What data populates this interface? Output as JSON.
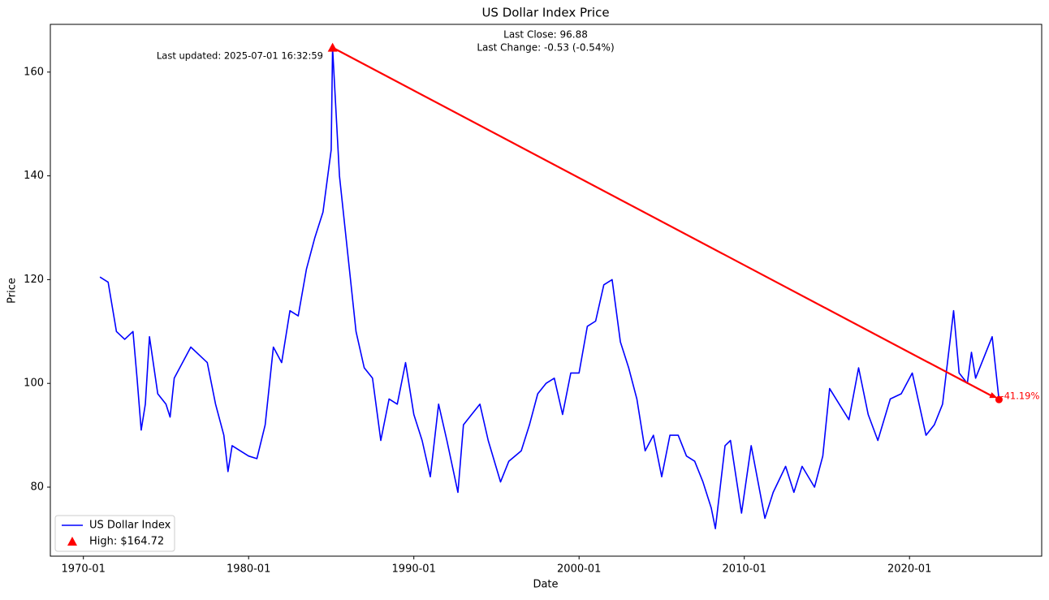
{
  "chart_data": {
    "type": "line",
    "title": "US Dollar Index Price",
    "x_label": "Date",
    "y_label": "Price",
    "x": [
      "1971-01",
      "1971-07",
      "1972-01",
      "1972-07",
      "1973-01",
      "1973-04",
      "1973-07",
      "1973-10",
      "1974-01",
      "1974-07",
      "1975-01",
      "1975-04",
      "1975-07",
      "1976-01",
      "1976-07",
      "1977-01",
      "1977-07",
      "1978-01",
      "1978-07",
      "1978-10",
      "1979-01",
      "1979-07",
      "1980-01",
      "1980-07",
      "1981-01",
      "1981-07",
      "1982-01",
      "1982-07",
      "1983-01",
      "1983-07",
      "1984-01",
      "1984-07",
      "1985-01",
      "1985-02",
      "1985-07",
      "1986-01",
      "1986-07",
      "1987-01",
      "1987-07",
      "1988-01",
      "1988-07",
      "1989-01",
      "1989-07",
      "1990-01",
      "1990-07",
      "1991-01",
      "1991-07",
      "1992-01",
      "1992-09",
      "1993-01",
      "1993-07",
      "1994-01",
      "1994-07",
      "1995-04",
      "1995-10",
      "1996-07",
      "1997-01",
      "1997-07",
      "1998-01",
      "1998-07",
      "1999-01",
      "1999-07",
      "2000-01",
      "2000-07",
      "2001-01",
      "2001-07",
      "2002-01",
      "2002-07",
      "2003-01",
      "2003-07",
      "2004-01",
      "2004-07",
      "2005-01",
      "2005-07",
      "2006-01",
      "2006-07",
      "2007-01",
      "2007-07",
      "2008-01",
      "2008-04",
      "2008-11",
      "2009-03",
      "2009-11",
      "2010-06",
      "2011-04",
      "2011-10",
      "2012-07",
      "2013-01",
      "2013-07",
      "2014-04",
      "2014-10",
      "2015-03",
      "2015-10",
      "2016-05",
      "2016-12",
      "2017-07",
      "2018-02",
      "2018-11",
      "2019-07",
      "2020-03",
      "2021-01",
      "2021-07",
      "2022-01",
      "2022-09",
      "2023-01",
      "2023-07",
      "2023-10",
      "2024-01",
      "2024-07",
      "2025-01",
      "2025-06"
    ],
    "series": [
      {
        "name": "US Dollar Index",
        "color": "#0000ff",
        "values": [
          120.5,
          119.5,
          110,
          108.5,
          110,
          101,
          91,
          96,
          109,
          98,
          96,
          93.5,
          101,
          104,
          107,
          105.5,
          104,
          96,
          90,
          83,
          88,
          87,
          86,
          85.5,
          92,
          107,
          104,
          114,
          113,
          122,
          128,
          133,
          145,
          164.72,
          140,
          125,
          110,
          103,
          101,
          89,
          97,
          96,
          104,
          94,
          89,
          82,
          96,
          89,
          79,
          92,
          94,
          96,
          89,
          81,
          85,
          87,
          92,
          98,
          100,
          101,
          94,
          102,
          102,
          111,
          112,
          119,
          120,
          108,
          103,
          97,
          87,
          90,
          82,
          90,
          90,
          86,
          85,
          81,
          76,
          72,
          88,
          89,
          75,
          88,
          74,
          79,
          84,
          79,
          84,
          80,
          86,
          99,
          96,
          93,
          103,
          94,
          89,
          97,
          98,
          102,
          90,
          92,
          96,
          114,
          102,
          100,
          106,
          101,
          105,
          109,
          96.88
        ]
      }
    ],
    "high": {
      "name": "High: $164.72",
      "x": "1985-02",
      "value": 164.72,
      "color": "#ff0000"
    },
    "last": {
      "x": "2025-06",
      "value": 96.88,
      "color": "#ff0000"
    },
    "change_label": "-41.19%",
    "annotations": [
      "Last Close: 96.88",
      "Last Change: -0.53 (-0.54%)",
      "Last updated: 2025-07-01 16:32:59"
    ],
    "xlim": [
      "1968-01",
      "2028-01"
    ],
    "xticks": [
      "1970-01",
      "1980-01",
      "1990-01",
      "2000-01",
      "2010-01",
      "2020-01"
    ],
    "ylim": [
      66.7,
      169.2
    ],
    "yticks": [
      80,
      100,
      120,
      140,
      160
    ],
    "legend": "lower left"
  }
}
